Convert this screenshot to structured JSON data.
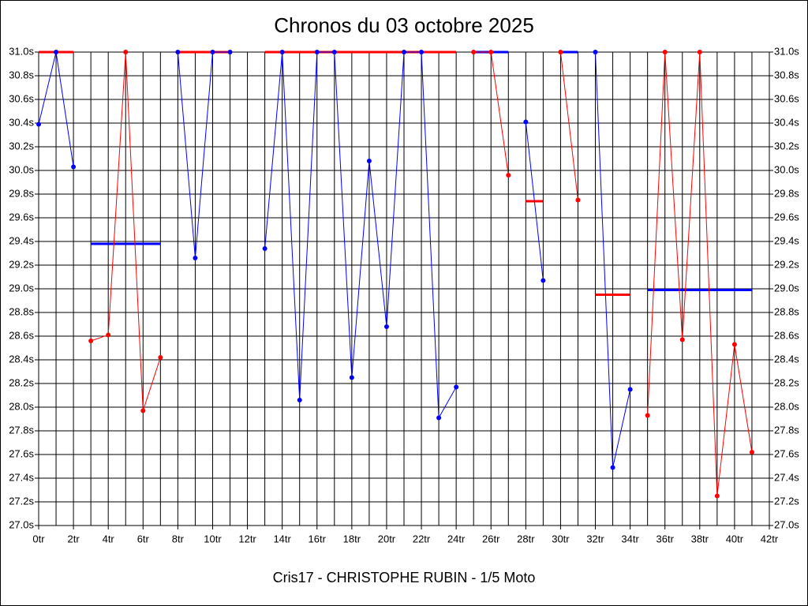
{
  "chart_data": {
    "type": "line",
    "title": "Chronos du 03 octobre 2025",
    "x_label": "Cris17 - CHRISTOPHE RUBIN - 1/5 Moto",
    "xlim": [
      0,
      42
    ],
    "xticks": [
      {
        "value": 0,
        "label": "0tr"
      },
      {
        "value": 2,
        "label": "2tr"
      },
      {
        "value": 4,
        "label": "4tr"
      },
      {
        "value": 6,
        "label": "6tr"
      },
      {
        "value": 8,
        "label": "8tr"
      },
      {
        "value": 10,
        "label": "10tr"
      },
      {
        "value": 12,
        "label": "12tr"
      },
      {
        "value": 14,
        "label": "14tr"
      },
      {
        "value": 16,
        "label": "16tr"
      },
      {
        "value": 18,
        "label": "18tr"
      },
      {
        "value": 20,
        "label": "20tr"
      },
      {
        "value": 22,
        "label": "22tr"
      },
      {
        "value": 24,
        "label": "24tr"
      },
      {
        "value": 26,
        "label": "26tr"
      },
      {
        "value": 28,
        "label": "28tr"
      },
      {
        "value": 30,
        "label": "30tr"
      },
      {
        "value": 32,
        "label": "32tr"
      },
      {
        "value": 34,
        "label": "34tr"
      },
      {
        "value": 36,
        "label": "36tr"
      },
      {
        "value": 38,
        "label": "38tr"
      },
      {
        "value": 40,
        "label": "40tr"
      },
      {
        "value": 42,
        "label": "42tr"
      }
    ],
    "xminorticks": [
      1,
      3,
      5,
      7,
      9,
      11,
      13,
      15,
      17,
      19,
      21,
      23,
      25,
      27,
      29,
      31,
      33,
      35,
      37,
      39,
      41
    ],
    "ylim": [
      27.0,
      31.0
    ],
    "yticks": [
      {
        "value": 27.0,
        "label": "27.0s"
      },
      {
        "value": 27.2,
        "label": "27.2s"
      },
      {
        "value": 27.4,
        "label": "27.4s"
      },
      {
        "value": 27.6,
        "label": "27.6s"
      },
      {
        "value": 27.8,
        "label": "27.8s"
      },
      {
        "value": 28.0,
        "label": "28.0s"
      },
      {
        "value": 28.2,
        "label": "28.2s"
      },
      {
        "value": 28.4,
        "label": "28.4s"
      },
      {
        "value": 28.6,
        "label": "28.6s"
      },
      {
        "value": 28.8,
        "label": "28.8s"
      },
      {
        "value": 29.0,
        "label": "29.0s"
      },
      {
        "value": 29.2,
        "label": "29.2s"
      },
      {
        "value": 29.4,
        "label": "29.4s"
      },
      {
        "value": 29.6,
        "label": "29.6s"
      },
      {
        "value": 29.8,
        "label": "29.8s"
      },
      {
        "value": 30.0,
        "label": "30.0s"
      },
      {
        "value": 30.2,
        "label": "30.2s"
      },
      {
        "value": 30.4,
        "label": "30.4s"
      },
      {
        "value": 30.6,
        "label": "30.6s"
      },
      {
        "value": 30.8,
        "label": "30.8s"
      },
      {
        "value": 31.0,
        "label": "31.0s"
      }
    ],
    "grid": true,
    "series": [
      {
        "color": "#0000ff",
        "x": [
          0,
          1,
          2
        ],
        "values": [
          30.39,
          31.0,
          30.03
        ]
      },
      {
        "color": "#ff0000",
        "x": [
          3,
          4,
          5,
          6,
          7
        ],
        "values": [
          28.56,
          28.61,
          31.0,
          27.97,
          28.42
        ]
      },
      {
        "color": "#0000ff",
        "x": [
          8,
          9,
          10,
          11
        ],
        "values": [
          31.0,
          29.26,
          31.0,
          31.0
        ]
      },
      {
        "color": "#0000ff",
        "x": [
          13,
          14,
          15,
          16,
          17,
          18,
          19,
          20,
          21,
          22,
          23,
          24
        ],
        "values": [
          29.34,
          31.0,
          28.06,
          31.0,
          31.0,
          28.25,
          30.08,
          28.68,
          31.0,
          31.0,
          27.91,
          28.17
        ]
      },
      {
        "color": "#ff0000",
        "x": [
          25,
          26,
          27
        ],
        "values": [
          31.0,
          31.0,
          29.96
        ]
      },
      {
        "color": "#0000ff",
        "x": [
          28,
          29
        ],
        "values": [
          30.41,
          29.07
        ]
      },
      {
        "color": "#ff0000",
        "x": [
          30,
          31
        ],
        "values": [
          31.0,
          29.75
        ]
      },
      {
        "color": "#0000ff",
        "x": [
          32,
          33,
          34
        ],
        "values": [
          31.0,
          27.49,
          28.15
        ]
      },
      {
        "color": "#ff0000",
        "x": [
          35,
          36,
          37,
          38,
          39,
          40,
          41
        ],
        "values": [
          27.93,
          31.0,
          28.57,
          31.0,
          27.25,
          28.53,
          27.62
        ]
      }
    ],
    "average_lines": [
      {
        "color": "#ff0000",
        "from": 0,
        "to": 2,
        "value": 31.0
      },
      {
        "color": "#0000ff",
        "from": 3,
        "to": 7,
        "value": 29.38
      },
      {
        "color": "#ff0000",
        "from": 8,
        "to": 11,
        "value": 31.0
      },
      {
        "color": "#ff0000",
        "from": 13,
        "to": 24,
        "value": 31.0
      },
      {
        "color": "#0000ff",
        "from": 25,
        "to": 27,
        "value": 31.0
      },
      {
        "color": "#ff0000",
        "from": 28,
        "to": 29,
        "value": 29.74
      },
      {
        "color": "#0000ff",
        "from": 30,
        "to": 31,
        "value": 31.0
      },
      {
        "color": "#ff0000",
        "from": 32,
        "to": 34,
        "value": 28.95
      },
      {
        "color": "#0000ff",
        "from": 35,
        "to": 41,
        "value": 28.99
      }
    ]
  }
}
